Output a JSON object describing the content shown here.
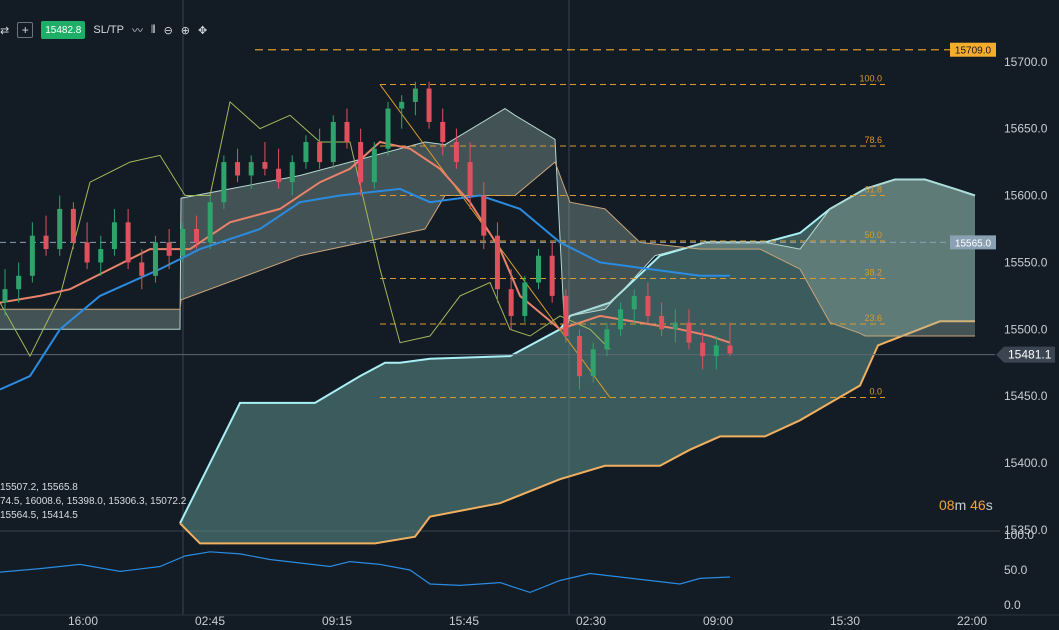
{
  "toolbar": {
    "current_price": "15482.8",
    "sltp_label": "SL/TP",
    "add_symbol": "+",
    "icons": [
      "swap-icon",
      "plus-icon",
      "line-chart-icon",
      "candles-icon",
      "zoom-out-icon",
      "zoom-in-icon",
      "crosshair-icon"
    ]
  },
  "price_axis": {
    "ticks": [
      "15700.0",
      "15650.0",
      "15600.0",
      "15550.0",
      "15500.0",
      "15450.0",
      "15400.0",
      "15350.0"
    ],
    "tick_values": [
      15700,
      15650,
      15600,
      15550,
      15500,
      15450,
      15400,
      15350
    ],
    "badges": [
      {
        "label": "15709.0",
        "value": 15709,
        "bg": "#f3ac2b",
        "fg": "#1a1a1a"
      },
      {
        "label": "15565.0",
        "value": 15565,
        "bg": "#8aa1b3",
        "fg": "#ffffff"
      },
      {
        "label": "15481.1",
        "value": 15481.1,
        "bg": "#3b4552",
        "fg": "#ffffff"
      }
    ]
  },
  "time_axis": {
    "labels": [
      "16:00",
      "02:45",
      "09:15",
      "15:45",
      "02:30",
      "09:00",
      "15:30",
      "22:00"
    ]
  },
  "oscillator": {
    "ticks": [
      "100.0",
      "50.0",
      "0.0"
    ],
    "tick_values": [
      100,
      50,
      0
    ]
  },
  "fib_levels": [
    {
      "label": "100.0",
      "value": 15683
    },
    {
      "label": "78.6",
      "value": 15637
    },
    {
      "label": "61.8",
      "value": 15600
    },
    {
      "label": "50.0",
      "value": 15566
    },
    {
      "label": "38.2",
      "value": 15538
    },
    {
      "label": "23.6",
      "value": 15504
    },
    {
      "label": "0.0",
      "value": 15449
    }
  ],
  "timer": {
    "minutes": "08",
    "m": "m ",
    "seconds": "46",
    "s": "s"
  },
  "info_lines": [
    "15507.2, 15565.8",
    "74.5, 16008.6, 15398.0, 15306.3, 15072.2",
    "15564.5, 15414.5"
  ],
  "colors": {
    "background": "#131c25",
    "bull": "#2fa36b",
    "bear": "#e0515e",
    "cloud_fill": "#5f8f8c",
    "cloud_upper": "#a8f0f5",
    "cloud_lower": "#f0b060",
    "fib": "#d99a2b",
    "tenkan": "#e8826a",
    "kijun": "#2b8be0",
    "chikou": "#a4b85a",
    "oscillator": "#2b8be0"
  },
  "chart_data": {
    "type": "candlestick",
    "instrument_price": 15482.8,
    "ylim": [
      15350,
      15720
    ],
    "osc_ylim": [
      0,
      100
    ],
    "candles": [
      [
        15520,
        15545,
        15510,
        15530
      ],
      [
        15530,
        15550,
        15520,
        15540
      ],
      [
        15540,
        15580,
        15535,
        15570
      ],
      [
        15570,
        15585,
        15555,
        15560
      ],
      [
        15560,
        15600,
        15555,
        15590
      ],
      [
        15590,
        15595,
        15560,
        15565
      ],
      [
        15565,
        15580,
        15545,
        15550
      ],
      [
        15550,
        15570,
        15540,
        15560
      ],
      [
        15560,
        15590,
        15555,
        15580
      ],
      [
        15580,
        15590,
        15545,
        15550
      ],
      [
        15550,
        15560,
        15530,
        15540
      ],
      [
        15540,
        15570,
        15535,
        15565
      ],
      [
        15565,
        15575,
        15545,
        15555
      ],
      [
        15555,
        15580,
        15550,
        15575
      ],
      [
        15575,
        15585,
        15560,
        15565
      ],
      [
        15565,
        15600,
        15560,
        15595
      ],
      [
        15595,
        15630,
        15590,
        15625
      ],
      [
        15625,
        15635,
        15610,
        15615
      ],
      [
        15615,
        15630,
        15605,
        15625
      ],
      [
        15625,
        15640,
        15615,
        15620
      ],
      [
        15620,
        15635,
        15605,
        15610
      ],
      [
        15610,
        15630,
        15600,
        15625
      ],
      [
        15625,
        15645,
        15620,
        15640
      ],
      [
        15640,
        15650,
        15620,
        15625
      ],
      [
        15625,
        15660,
        15620,
        15655
      ],
      [
        15655,
        15665,
        15635,
        15640
      ],
      [
        15640,
        15650,
        15600,
        15610
      ],
      [
        15610,
        15640,
        15605,
        15635
      ],
      [
        15635,
        15670,
        15630,
        15665
      ],
      [
        15665,
        15675,
        15650,
        15670
      ],
      [
        15670,
        15685,
        15660,
        15680
      ],
      [
        15680,
        15685,
        15650,
        15655
      ],
      [
        15655,
        15665,
        15630,
        15640
      ],
      [
        15640,
        15650,
        15620,
        15625
      ],
      [
        15625,
        15640,
        15590,
        15600
      ],
      [
        15600,
        15610,
        15560,
        15570
      ],
      [
        15570,
        15580,
        15520,
        15530
      ],
      [
        15530,
        15545,
        15500,
        15510
      ],
      [
        15510,
        15540,
        15505,
        15535
      ],
      [
        15535,
        15560,
        15530,
        15555
      ],
      [
        15555,
        15565,
        15520,
        15525
      ],
      [
        15525,
        15530,
        15490,
        15495
      ],
      [
        15495,
        15500,
        15455,
        15465
      ],
      [
        15465,
        15490,
        15460,
        15485
      ],
      [
        15485,
        15505,
        15480,
        15500
      ],
      [
        15500,
        15520,
        15495,
        15515
      ],
      [
        15515,
        15530,
        15505,
        15525
      ],
      [
        15525,
        15535,
        15505,
        15510
      ],
      [
        15510,
        15520,
        15495,
        15500
      ],
      [
        15500,
        15515,
        15490,
        15505
      ],
      [
        15505,
        15515,
        15485,
        15490
      ],
      [
        15490,
        15500,
        15470,
        15480
      ],
      [
        15480,
        15495,
        15470,
        15488
      ],
      [
        15488,
        15505,
        15480,
        15482
      ]
    ],
    "cloud_upper": [
      [
        0,
        15500
      ],
      [
        180,
        15500
      ],
      [
        181,
        15598
      ],
      [
        300,
        15615
      ],
      [
        425,
        15640
      ],
      [
        445,
        15638
      ],
      [
        505,
        15665
      ],
      [
        515,
        15660
      ],
      [
        555,
        15642
      ],
      [
        565,
        15495
      ],
      [
        570,
        15510
      ],
      [
        605,
        15515
      ],
      [
        655,
        15555
      ],
      [
        705,
        15565
      ],
      [
        765,
        15565
      ],
      [
        800,
        15560
      ],
      [
        830,
        15590
      ],
      [
        865,
        15605
      ],
      [
        895,
        15612
      ],
      [
        925,
        15612
      ],
      [
        955,
        15605
      ],
      [
        975,
        15600
      ]
    ],
    "cloud_lower": [
      [
        0,
        15515
      ],
      [
        180,
        15515
      ],
      [
        181,
        15522
      ],
      [
        300,
        15555
      ],
      [
        425,
        15575
      ],
      [
        445,
        15600
      ],
      [
        505,
        15600
      ],
      [
        515,
        15600
      ],
      [
        555,
        15625
      ],
      [
        565,
        15605
      ],
      [
        570,
        15595
      ],
      [
        605,
        15590
      ],
      [
        640,
        15565
      ],
      [
        700,
        15560
      ],
      [
        760,
        15560
      ],
      [
        800,
        15545
      ],
      [
        830,
        15505
      ],
      [
        860,
        15497
      ],
      [
        865,
        15495
      ],
      [
        975,
        15495
      ]
    ],
    "cloud_fill_upper": [
      [
        180,
        15355
      ],
      [
        200,
        15385
      ],
      [
        240,
        15445
      ],
      [
        315,
        15445
      ],
      [
        360,
        15465
      ],
      [
        385,
        15475
      ],
      [
        400,
        15475
      ],
      [
        430,
        15478
      ],
      [
        510,
        15480
      ],
      [
        560,
        15500
      ],
      [
        570,
        15510
      ],
      [
        610,
        15520
      ],
      [
        660,
        15555
      ],
      [
        705,
        15565
      ],
      [
        765,
        15565
      ],
      [
        800,
        15572
      ],
      [
        830,
        15590
      ],
      [
        865,
        15605
      ],
      [
        895,
        15612
      ],
      [
        925,
        15612
      ],
      [
        955,
        15605
      ],
      [
        975,
        15600
      ]
    ],
    "cloud_fill_lower": [
      [
        180,
        15355
      ],
      [
        200,
        15340
      ],
      [
        375,
        15340
      ],
      [
        415,
        15345
      ],
      [
        430,
        15360
      ],
      [
        500,
        15370
      ],
      [
        560,
        15388
      ],
      [
        605,
        15398
      ],
      [
        660,
        15398
      ],
      [
        690,
        15410
      ],
      [
        720,
        15420
      ],
      [
        765,
        15420
      ],
      [
        800,
        15432
      ],
      [
        830,
        15445
      ],
      [
        860,
        15458
      ],
      [
        878,
        15488
      ],
      [
        940,
        15506
      ],
      [
        975,
        15506
      ]
    ],
    "tenkan": [
      [
        0,
        15520
      ],
      [
        40,
        15525
      ],
      [
        70,
        15530
      ],
      [
        110,
        15545
      ],
      [
        150,
        15560
      ],
      [
        190,
        15560
      ],
      [
        230,
        15580
      ],
      [
        280,
        15590
      ],
      [
        320,
        15610
      ],
      [
        350,
        15620
      ],
      [
        380,
        15640
      ],
      [
        410,
        15635
      ],
      [
        440,
        15620
      ],
      [
        470,
        15595
      ],
      [
        500,
        15560
      ],
      [
        520,
        15525
      ],
      [
        560,
        15500
      ],
      [
        600,
        15510
      ],
      [
        640,
        15505
      ],
      [
        680,
        15500
      ],
      [
        710,
        15495
      ],
      [
        730,
        15490
      ]
    ],
    "kijun": [
      [
        0,
        15455
      ],
      [
        30,
        15465
      ],
      [
        60,
        15500
      ],
      [
        100,
        15525
      ],
      [
        160,
        15545
      ],
      [
        200,
        15560
      ],
      [
        260,
        15575
      ],
      [
        300,
        15595
      ],
      [
        340,
        15600
      ],
      [
        400,
        15605
      ],
      [
        430,
        15595
      ],
      [
        480,
        15600
      ],
      [
        520,
        15590
      ],
      [
        560,
        15565
      ],
      [
        600,
        15550
      ],
      [
        650,
        15545
      ],
      [
        700,
        15540
      ],
      [
        730,
        15540
      ]
    ],
    "chikou": [
      [
        0,
        15520
      ],
      [
        30,
        15480
      ],
      [
        60,
        15525
      ],
      [
        90,
        15610
      ],
      [
        130,
        15625
      ],
      [
        160,
        15630
      ],
      [
        185,
        15600
      ],
      [
        210,
        15600
      ],
      [
        230,
        15670
      ],
      [
        260,
        15650
      ],
      [
        290,
        15660
      ],
      [
        320,
        15640
      ],
      [
        350,
        15640
      ],
      [
        380,
        15545
      ],
      [
        400,
        15490
      ],
      [
        430,
        15495
      ],
      [
        460,
        15525
      ],
      [
        490,
        15535
      ],
      [
        510,
        15500
      ],
      [
        530,
        15495
      ],
      [
        560,
        15510
      ],
      [
        590,
        15500
      ],
      [
        610,
        15485
      ]
    ],
    "oscillator": [
      [
        0,
        47
      ],
      [
        40,
        52
      ],
      [
        80,
        58
      ],
      [
        120,
        48
      ],
      [
        160,
        55
      ],
      [
        185,
        70
      ],
      [
        210,
        76
      ],
      [
        240,
        73
      ],
      [
        270,
        65
      ],
      [
        300,
        60
      ],
      [
        330,
        55
      ],
      [
        350,
        62
      ],
      [
        380,
        58
      ],
      [
        410,
        50
      ],
      [
        430,
        30
      ],
      [
        460,
        28
      ],
      [
        500,
        32
      ],
      [
        530,
        18
      ],
      [
        560,
        35
      ],
      [
        590,
        45
      ],
      [
        620,
        40
      ],
      [
        650,
        35
      ],
      [
        680,
        30
      ],
      [
        700,
        38
      ],
      [
        730,
        40
      ]
    ]
  }
}
